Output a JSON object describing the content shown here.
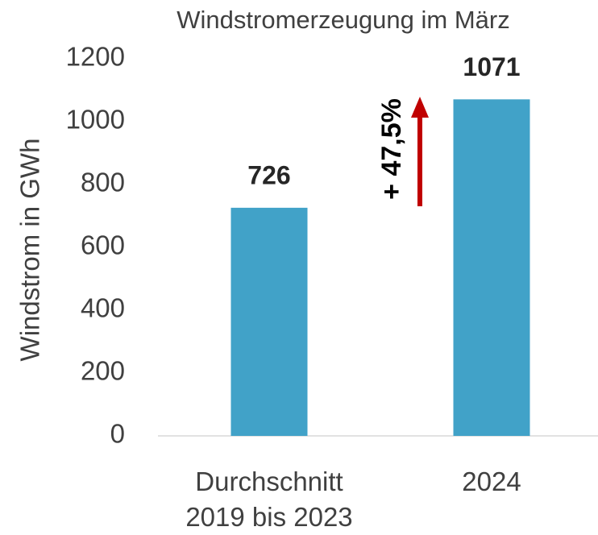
{
  "chart_data": {
    "type": "bar",
    "title": "Windstromerzeugung im März",
    "y_label": "Windstrom in  GWh",
    "categories": [
      "Durchschnitt 2019 bis 2023",
      "2024"
    ],
    "values": [
      726,
      1071
    ],
    "color": "#41a2c8",
    "ylim": [
      0,
      1200
    ],
    "yticks": [
      0,
      200,
      400,
      600,
      800,
      1000,
      1200
    ],
    "grid": false,
    "annotation": "+ 47,5%",
    "annotation_color": "#c00000"
  }
}
